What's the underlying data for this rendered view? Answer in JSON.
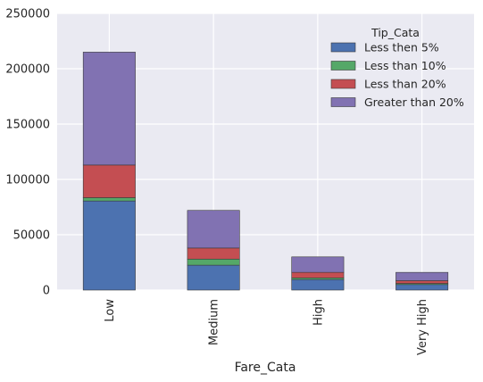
{
  "chart_data": {
    "type": "bar",
    "stacked": true,
    "categories": [
      "Low",
      "Medium",
      "High",
      "Very High"
    ],
    "series": [
      {
        "name": "Less then 5%",
        "color": "#4C72B0",
        "values": [
          80500,
          22500,
          9500,
          5000
        ]
      },
      {
        "name": "Less than 10%",
        "color": "#55A868",
        "values": [
          3000,
          5500,
          1500,
          1000
        ]
      },
      {
        "name": "Less than 20%",
        "color": "#C44E52",
        "values": [
          29500,
          10000,
          5000,
          2500
        ]
      },
      {
        "name": "Greater than 20%",
        "color": "#8172B2",
        "values": [
          102000,
          34000,
          14000,
          7500
        ]
      }
    ],
    "xlabel": "Fare_Cata",
    "ylabel": "",
    "ylim": [
      0,
      250000
    ],
    "yticks": [
      "0",
      "50000",
      "100000",
      "150000",
      "200000",
      "250000"
    ],
    "grid": true,
    "background": "#EAEAF2",
    "legend": {
      "title": "Tip_Cata",
      "placement": "top-right"
    }
  }
}
